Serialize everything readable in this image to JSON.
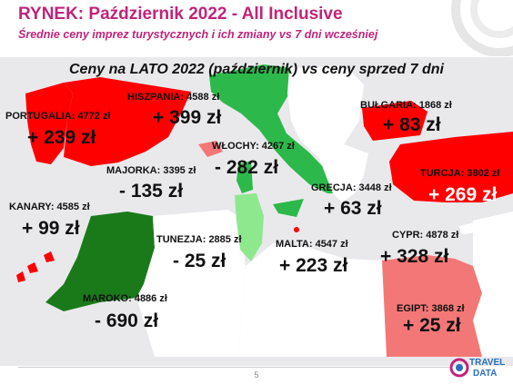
{
  "header": {
    "title": "RYNEK: Październik 2022 - All Inclusive",
    "subtitle": "Średnie ceny imprez turystycznych i ich zmiany vs 7 dni wcześniej"
  },
  "map": {
    "title": "Ceny na LATO 2022 (październik) vs ceny sprzed 7 dni",
    "legend_colors": {
      "increase": "#ff0000",
      "decrease_large": "#1a7a1a",
      "decrease": "#2db84b",
      "decrease_light": "#8ee88e",
      "increase_light": "#f47777"
    },
    "destinations": [
      {
        "label": "PORTUGALIA: 4772 zł",
        "change": "+ 239 zł"
      },
      {
        "label": "HISZPANIA: 4588 zł",
        "change": "+ 399 zł"
      },
      {
        "label": "WŁOCHY: 4267 zł",
        "change": "- 282 zł"
      },
      {
        "label": "BUŁGARIA: 1868 zł",
        "change": "+ 83 zł"
      },
      {
        "label": "MAJORKA: 3395 zł",
        "change": "- 135 zł"
      },
      {
        "label": "TURCJA: 3802 zł",
        "change": "+ 269 zł"
      },
      {
        "label": "GRECJA: 3448 zł",
        "change": "+ 63 zł"
      },
      {
        "label": "KANARY: 4585 zł",
        "change": "+ 99 zł"
      },
      {
        "label": "TUNEZJA: 2885 zł",
        "change": "- 25 zł"
      },
      {
        "label": "MALTA: 4547 zł",
        "change": "+ 223 zł"
      },
      {
        "label": "CYPR: 4878 zł",
        "change": "+ 328 zł"
      },
      {
        "label": "MAROKO: 4886 zł",
        "change": "- 690 zł"
      },
      {
        "label": "EGIPT: 3868 zł",
        "change": "+ 25 zł"
      }
    ]
  },
  "footer": {
    "page_number": "5",
    "logo_text": "TRAVEL DATA"
  }
}
